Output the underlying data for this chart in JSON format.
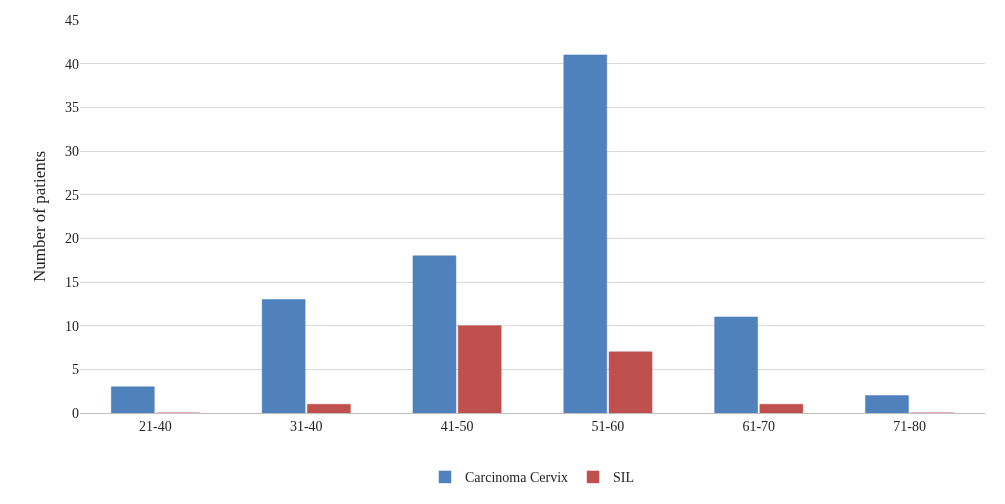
{
  "chart_data": {
    "type": "bar",
    "ylabel": "Number of patients",
    "categories": [
      "21-40",
      "31-40",
      "41-50",
      "51-60",
      "61-70",
      "71-80"
    ],
    "series": [
      {
        "name": "Carcinoma Cervix",
        "color": "#4f81bd",
        "values": [
          3,
          13,
          18,
          41,
          11,
          2
        ]
      },
      {
        "name": "SIL",
        "color": "#c0504d",
        "values": [
          0,
          1,
          10,
          7,
          1,
          0
        ]
      }
    ],
    "ylim": [
      0,
      45
    ],
    "yticks": [
      0,
      5,
      10,
      15,
      20,
      25,
      30,
      35,
      40,
      45
    ],
    "grid": "y",
    "legend": "bottom"
  }
}
